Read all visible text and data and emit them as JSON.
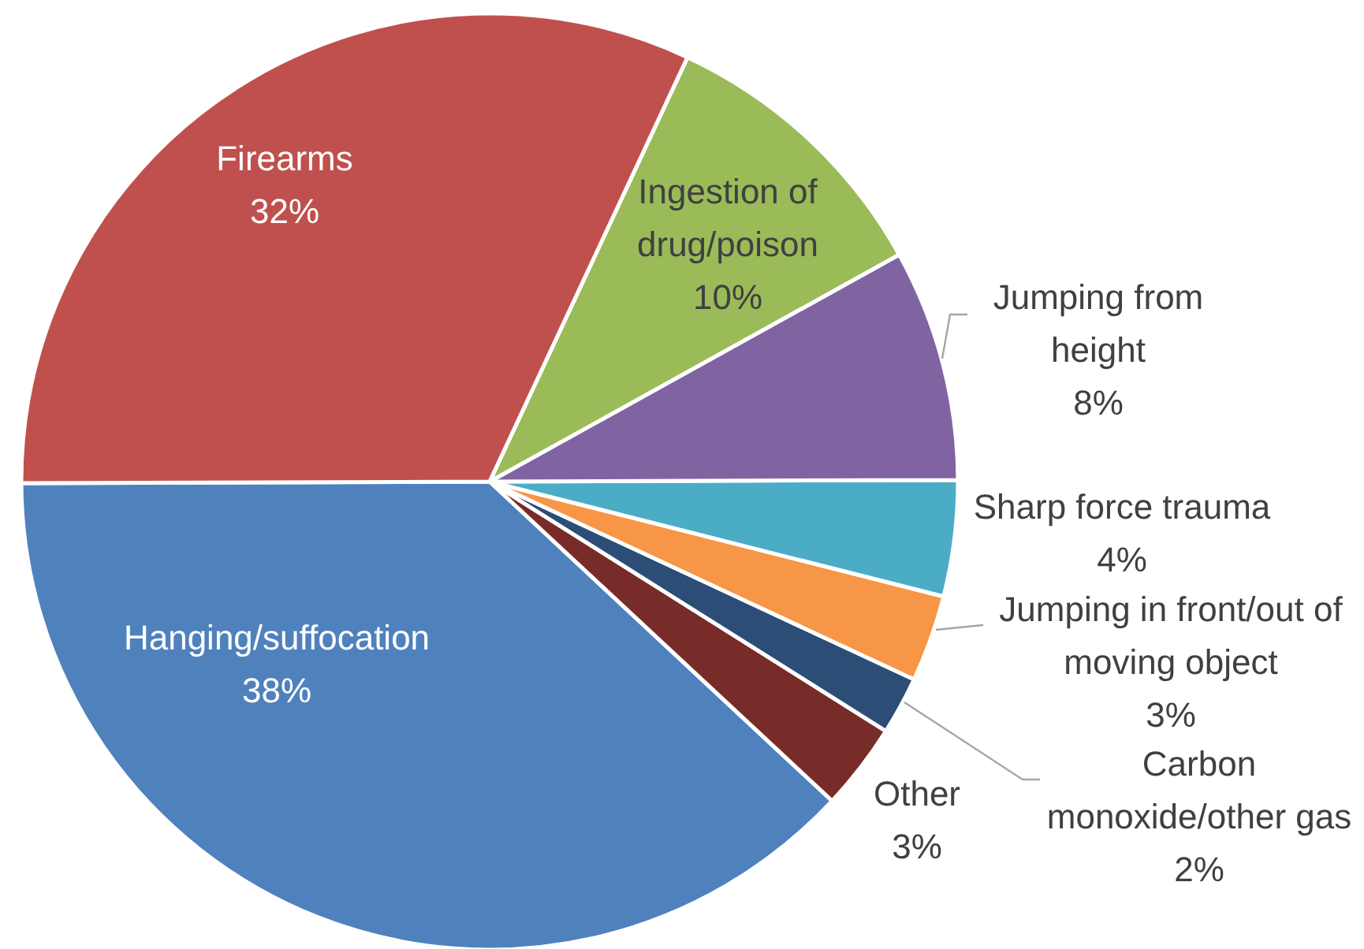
{
  "chart_data": {
    "type": "pie",
    "categories": [
      "Hanging/suffocation",
      "Other",
      "Carbon monoxide/other gas",
      "Jumping in front/out of moving object",
      "Sharp force trauma",
      "Jumping from height",
      "Ingestion of drug/poison",
      "Firearms"
    ],
    "values": [
      38,
      3,
      2,
      3,
      4,
      8,
      10,
      32
    ],
    "colors": [
      "#4f81bd",
      "#772c2a",
      "#2c4d75",
      "#f79646",
      "#4bacc6",
      "#8064a2",
      "#9bbb59",
      "#c0504d"
    ],
    "value_labels": [
      "38%",
      "3%",
      "2%",
      "3%",
      "4%",
      "8%",
      "10%",
      "32%"
    ]
  }
}
